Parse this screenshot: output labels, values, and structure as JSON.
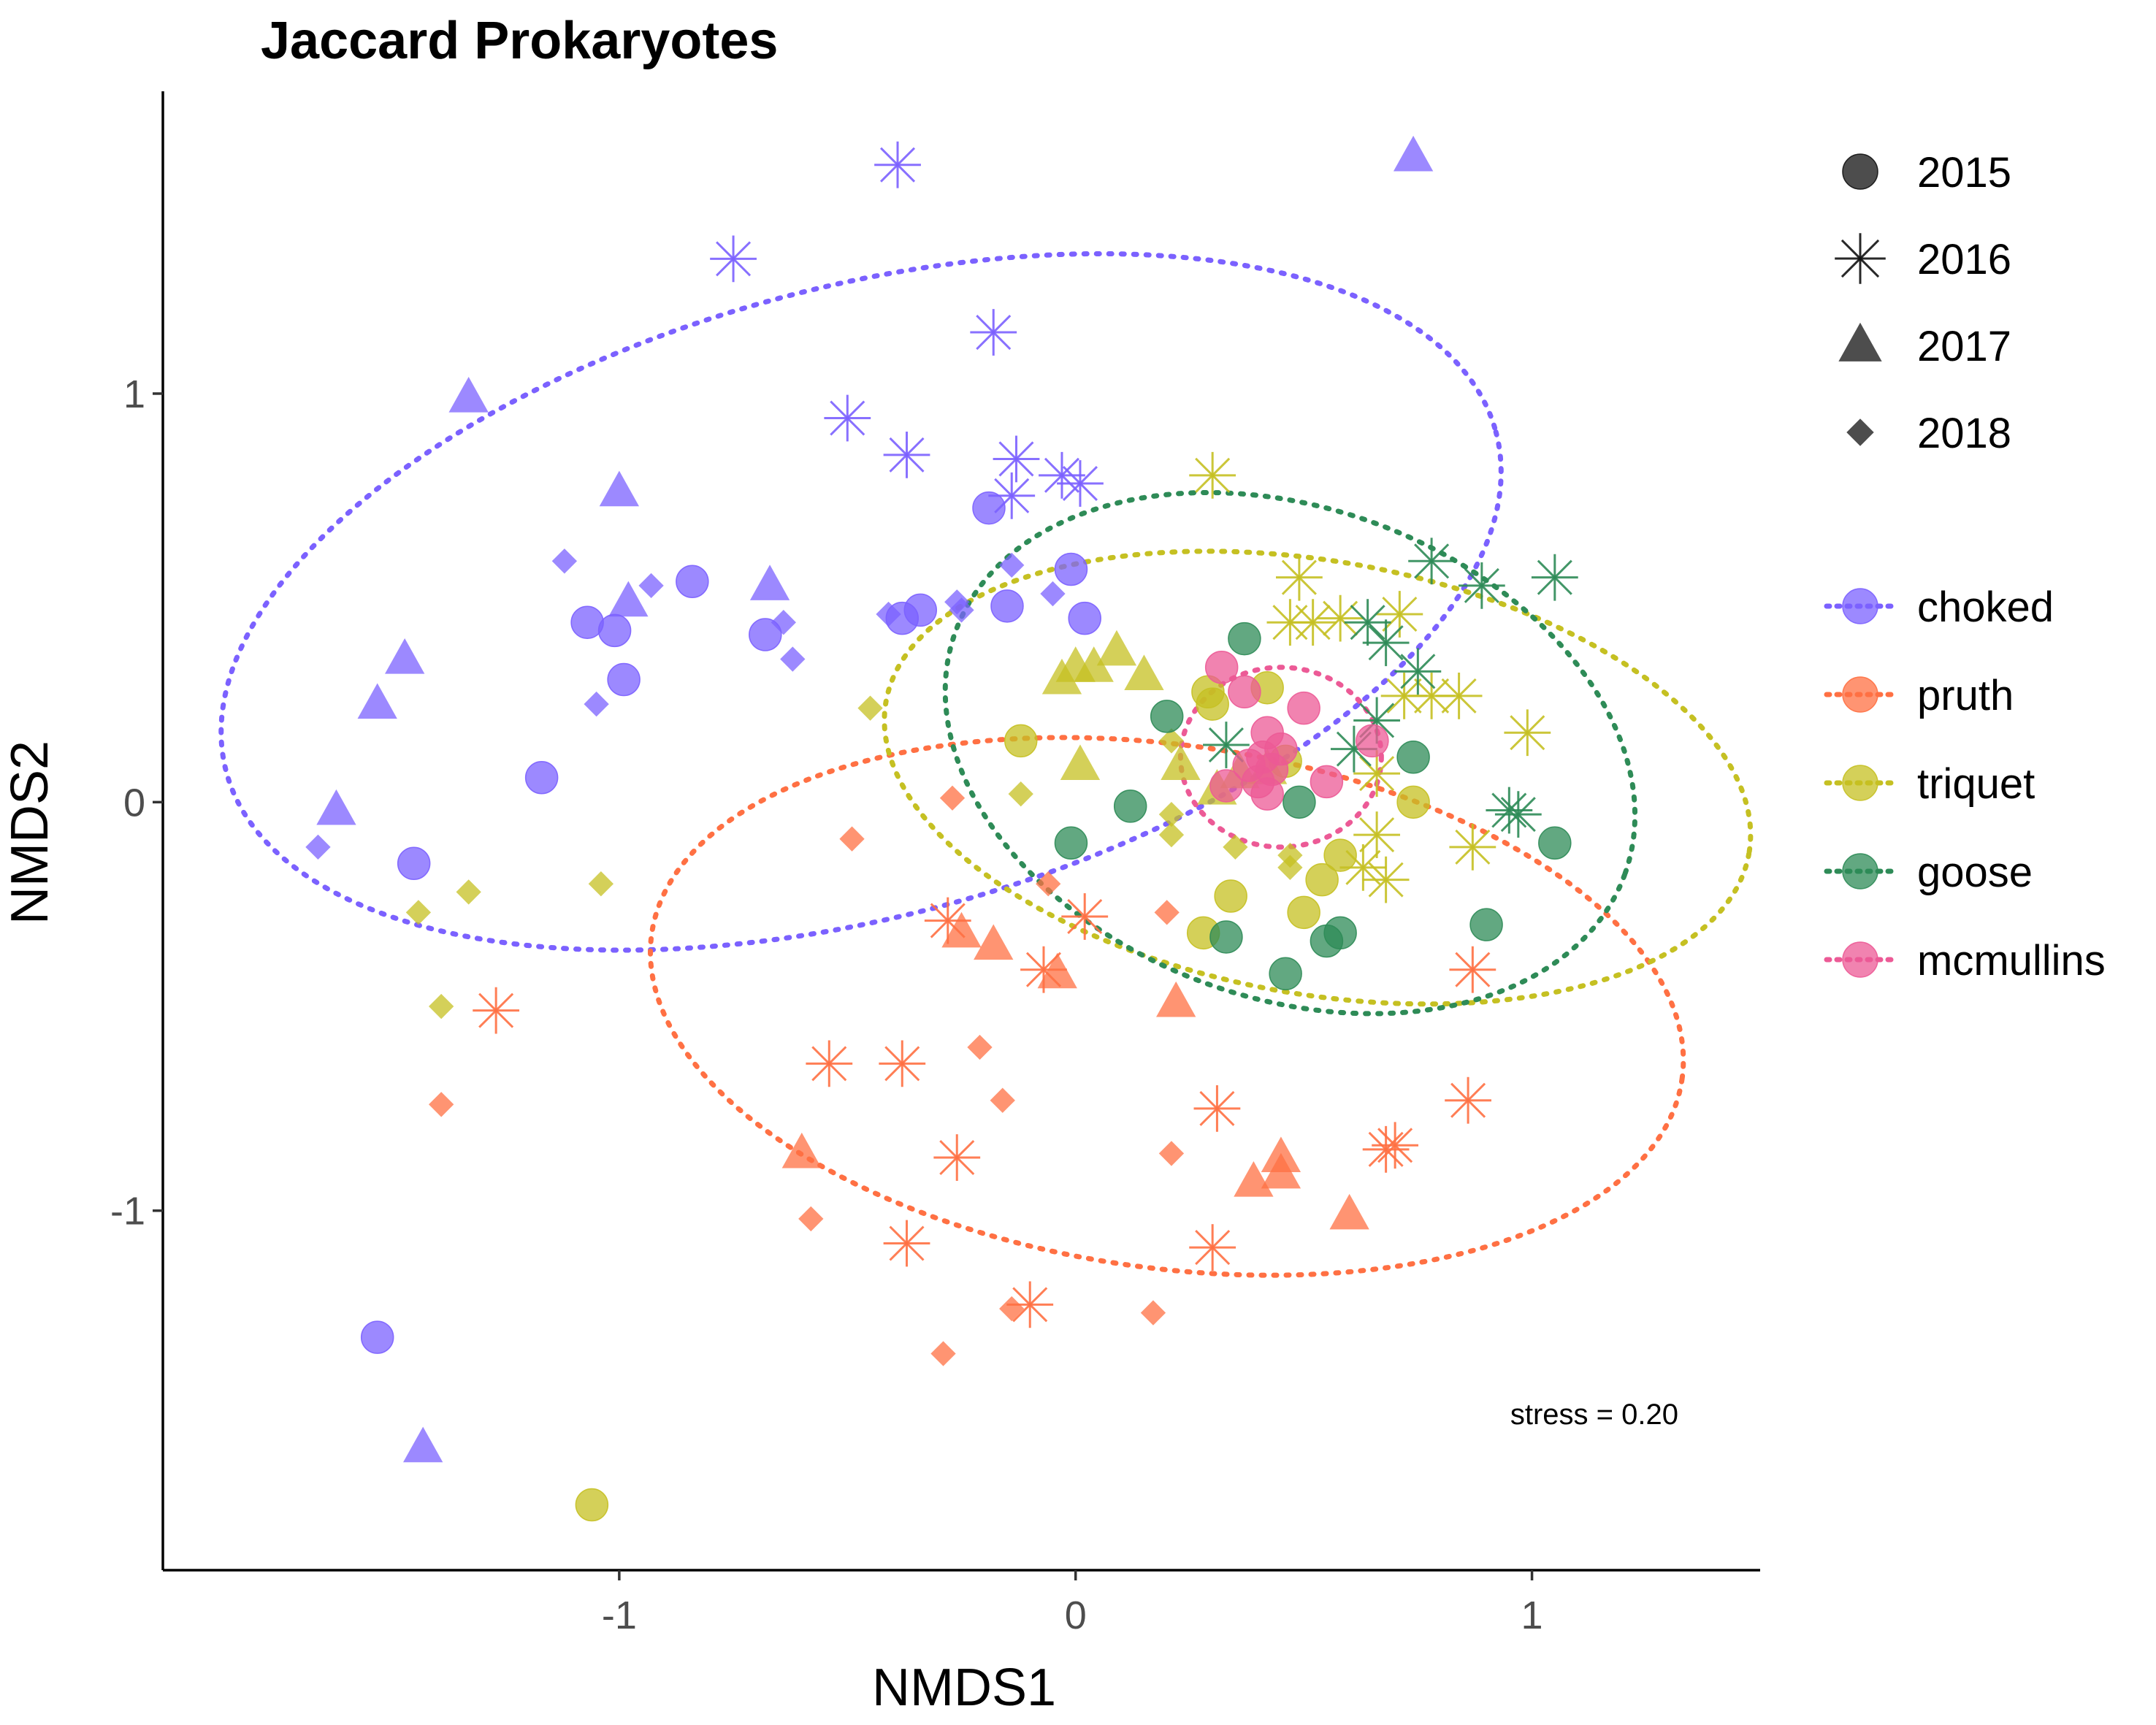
{
  "chart_data": {
    "type": "scatter",
    "title": "Jaccard Prokaryotes",
    "xlabel": "NMDS1",
    "ylabel": "NMDS2",
    "xlim": [
      -2.0,
      1.5
    ],
    "ylim": [
      -1.88,
      1.74
    ],
    "xticks": [
      -1,
      0,
      1
    ],
    "yticks": [
      -1,
      0,
      1
    ],
    "grid": false,
    "legend_position": "right",
    "annotation": "stress = 0.20",
    "shape_legend": [
      {
        "label": "2015",
        "shape": "circle"
      },
      {
        "label": "2016",
        "shape": "asterisk"
      },
      {
        "label": "2017",
        "shape": "triangle"
      },
      {
        "label": "2018",
        "shape": "diamond"
      }
    ],
    "series": [
      {
        "name": "choked",
        "color": "#7B61FF",
        "ellipse": {
          "cx": -0.47,
          "cy": 0.49,
          "rx": 1.44,
          "ry": 0.77,
          "angle": 15
        },
        "points": [
          {
            "x": 0.74,
            "y": 1.58,
            "year": "2017"
          },
          {
            "x": -0.39,
            "y": 1.56,
            "year": "2016"
          },
          {
            "x": -0.75,
            "y": 1.33,
            "year": "2016"
          },
          {
            "x": -0.18,
            "y": 1.15,
            "year": "2016"
          },
          {
            "x": -1.33,
            "y": 0.99,
            "year": "2017"
          },
          {
            "x": -0.5,
            "y": 0.94,
            "year": "2016"
          },
          {
            "x": -0.37,
            "y": 0.85,
            "year": "2016"
          },
          {
            "x": -0.13,
            "y": 0.84,
            "year": "2016"
          },
          {
            "x": -0.03,
            "y": 0.8,
            "year": "2016"
          },
          {
            "x": 0.01,
            "y": 0.78,
            "year": "2016"
          },
          {
            "x": -1.0,
            "y": 0.76,
            "year": "2017"
          },
          {
            "x": -0.14,
            "y": 0.75,
            "year": "2016"
          },
          {
            "x": -0.19,
            "y": 0.72,
            "year": "2015"
          },
          {
            "x": -1.12,
            "y": 0.59,
            "year": "2018"
          },
          {
            "x": -0.14,
            "y": 0.58,
            "year": "2018"
          },
          {
            "x": -0.01,
            "y": 0.57,
            "year": "2015"
          },
          {
            "x": -0.67,
            "y": 0.53,
            "year": "2017"
          },
          {
            "x": -0.84,
            "y": 0.54,
            "year": "2015"
          },
          {
            "x": -0.93,
            "y": 0.53,
            "year": "2018"
          },
          {
            "x": -0.98,
            "y": 0.49,
            "year": "2017"
          },
          {
            "x": -0.05,
            "y": 0.51,
            "year": "2018"
          },
          {
            "x": -0.26,
            "y": 0.49,
            "year": "2018"
          },
          {
            "x": -0.15,
            "y": 0.48,
            "year": "2015"
          },
          {
            "x": -0.34,
            "y": 0.47,
            "year": "2015"
          },
          {
            "x": -0.41,
            "y": 0.46,
            "year": "2018"
          },
          {
            "x": -0.38,
            "y": 0.45,
            "year": "2015"
          },
          {
            "x": -0.25,
            "y": 0.47,
            "year": "2018"
          },
          {
            "x": 0.02,
            "y": 0.45,
            "year": "2015"
          },
          {
            "x": -1.07,
            "y": 0.44,
            "year": "2015"
          },
          {
            "x": -1.01,
            "y": 0.42,
            "year": "2015"
          },
          {
            "x": -0.68,
            "y": 0.41,
            "year": "2015"
          },
          {
            "x": -0.64,
            "y": 0.44,
            "year": "2018"
          },
          {
            "x": -0.62,
            "y": 0.35,
            "year": "2018"
          },
          {
            "x": -1.47,
            "y": 0.35,
            "year": "2017"
          },
          {
            "x": -0.99,
            "y": 0.3,
            "year": "2015"
          },
          {
            "x": -1.05,
            "y": 0.24,
            "year": "2018"
          },
          {
            "x": -1.53,
            "y": 0.24,
            "year": "2017"
          },
          {
            "x": -1.17,
            "y": 0.06,
            "year": "2015"
          },
          {
            "x": -1.62,
            "y": -0.02,
            "year": "2017"
          },
          {
            "x": -1.66,
            "y": -0.11,
            "year": "2018"
          },
          {
            "x": -1.45,
            "y": -0.15,
            "year": "2015"
          },
          {
            "x": -1.53,
            "y": -1.31,
            "year": "2015"
          },
          {
            "x": -1.43,
            "y": -1.58,
            "year": "2017"
          }
        ]
      },
      {
        "name": "pruth",
        "color": "#FF7043",
        "ellipse": {
          "cx": 0.2,
          "cy": -0.5,
          "rx": 1.14,
          "ry": 0.64,
          "angle": -8
        },
        "points": [
          {
            "x": -0.27,
            "y": 0.01,
            "year": "2018"
          },
          {
            "x": -0.49,
            "y": -0.09,
            "year": "2018"
          },
          {
            "x": -0.06,
            "y": -0.2,
            "year": "2018"
          },
          {
            "x": 0.2,
            "y": -0.27,
            "year": "2018"
          },
          {
            "x": 0.02,
            "y": -0.28,
            "year": "2016"
          },
          {
            "x": -0.28,
            "y": -0.29,
            "year": "2016"
          },
          {
            "x": -0.25,
            "y": -0.32,
            "year": "2017"
          },
          {
            "x": -0.18,
            "y": -0.35,
            "year": "2017"
          },
          {
            "x": 0.87,
            "y": -0.41,
            "year": "2016"
          },
          {
            "x": -0.07,
            "y": -0.41,
            "year": "2016"
          },
          {
            "x": -0.04,
            "y": -0.42,
            "year": "2017"
          },
          {
            "x": 0.22,
            "y": -0.49,
            "year": "2017"
          },
          {
            "x": -1.27,
            "y": -0.51,
            "year": "2016"
          },
          {
            "x": -0.21,
            "y": -0.6,
            "year": "2018"
          },
          {
            "x": -0.54,
            "y": -0.64,
            "year": "2016"
          },
          {
            "x": -0.38,
            "y": -0.64,
            "year": "2016"
          },
          {
            "x": -1.39,
            "y": -0.74,
            "year": "2018"
          },
          {
            "x": -0.16,
            "y": -0.73,
            "year": "2018"
          },
          {
            "x": 0.86,
            "y": -0.73,
            "year": "2016"
          },
          {
            "x": 0.31,
            "y": -0.75,
            "year": "2016"
          },
          {
            "x": 0.68,
            "y": -0.85,
            "year": "2016"
          },
          {
            "x": 0.7,
            "y": -0.84,
            "year": "2016"
          },
          {
            "x": -0.6,
            "y": -0.86,
            "year": "2017"
          },
          {
            "x": 0.45,
            "y": -0.87,
            "year": "2017"
          },
          {
            "x": 0.21,
            "y": -0.86,
            "year": "2018"
          },
          {
            "x": -0.26,
            "y": -0.87,
            "year": "2016"
          },
          {
            "x": 0.39,
            "y": -0.93,
            "year": "2017"
          },
          {
            "x": 0.45,
            "y": -0.91,
            "year": "2017"
          },
          {
            "x": -0.58,
            "y": -1.02,
            "year": "2018"
          },
          {
            "x": 0.6,
            "y": -1.01,
            "year": "2017"
          },
          {
            "x": -0.37,
            "y": -1.08,
            "year": "2016"
          },
          {
            "x": 0.3,
            "y": -1.09,
            "year": "2016"
          },
          {
            "x": -0.1,
            "y": -1.23,
            "year": "2016"
          },
          {
            "x": -0.14,
            "y": -1.24,
            "year": "2018"
          },
          {
            "x": 0.17,
            "y": -1.25,
            "year": "2018"
          },
          {
            "x": -0.29,
            "y": -1.35,
            "year": "2018"
          }
        ]
      },
      {
        "name": "triquet",
        "color": "#C5C022",
        "ellipse": {
          "cx": 0.53,
          "cy": 0.06,
          "rx": 0.96,
          "ry": 0.53,
          "angle": -10
        },
        "points": [
          {
            "x": 0.3,
            "y": 0.8,
            "year": "2016"
          },
          {
            "x": 0.49,
            "y": 0.55,
            "year": "2016"
          },
          {
            "x": 0.71,
            "y": 0.46,
            "year": "2016"
          },
          {
            "x": 0.52,
            "y": 0.44,
            "year": "2016"
          },
          {
            "x": 0.47,
            "y": 0.44,
            "year": "2016"
          },
          {
            "x": 0.58,
            "y": 0.45,
            "year": "2016"
          },
          {
            "x": 0.09,
            "y": 0.37,
            "year": "2017"
          },
          {
            "x": 0.0,
            "y": 0.33,
            "year": "2017"
          },
          {
            "x": 0.04,
            "y": 0.33,
            "year": "2017"
          },
          {
            "x": 0.15,
            "y": 0.31,
            "year": "2017"
          },
          {
            "x": -0.03,
            "y": 0.3,
            "year": "2017"
          },
          {
            "x": 0.42,
            "y": 0.28,
            "year": "2015"
          },
          {
            "x": 0.29,
            "y": 0.27,
            "year": "2015"
          },
          {
            "x": 0.3,
            "y": 0.24,
            "year": "2015"
          },
          {
            "x": 0.72,
            "y": 0.26,
            "year": "2016"
          },
          {
            "x": 0.78,
            "y": 0.26,
            "year": "2016"
          },
          {
            "x": 0.84,
            "y": 0.26,
            "year": "2016"
          },
          {
            "x": -0.45,
            "y": 0.23,
            "year": "2018"
          },
          {
            "x": 0.99,
            "y": 0.17,
            "year": "2016"
          },
          {
            "x": -0.12,
            "y": 0.15,
            "year": "2015"
          },
          {
            "x": 0.21,
            "y": 0.15,
            "year": "2018"
          },
          {
            "x": 0.36,
            "y": 0.07,
            "year": "2017"
          },
          {
            "x": 0.01,
            "y": 0.09,
            "year": "2017"
          },
          {
            "x": 0.23,
            "y": 0.09,
            "year": "2017"
          },
          {
            "x": 0.42,
            "y": 0.08,
            "year": "2017"
          },
          {
            "x": 0.46,
            "y": 0.1,
            "year": "2015"
          },
          {
            "x": 0.31,
            "y": 0.03,
            "year": "2017"
          },
          {
            "x": 0.66,
            "y": 0.07,
            "year": "2016"
          },
          {
            "x": -0.12,
            "y": 0.02,
            "year": "2018"
          },
          {
            "x": 0.74,
            "y": 0.0,
            "year": "2015"
          },
          {
            "x": 0.21,
            "y": -0.03,
            "year": "2018"
          },
          {
            "x": 0.21,
            "y": -0.08,
            "year": "2018"
          },
          {
            "x": 0.66,
            "y": -0.08,
            "year": "2016"
          },
          {
            "x": 0.35,
            "y": -0.11,
            "year": "2018"
          },
          {
            "x": 0.47,
            "y": -0.13,
            "year": "2018"
          },
          {
            "x": 0.58,
            "y": -0.13,
            "year": "2015"
          },
          {
            "x": 0.87,
            "y": -0.11,
            "year": "2016"
          },
          {
            "x": 0.47,
            "y": -0.16,
            "year": "2018"
          },
          {
            "x": 0.63,
            "y": -0.16,
            "year": "2016"
          },
          {
            "x": 0.68,
            "y": -0.19,
            "year": "2016"
          },
          {
            "x": 0.54,
            "y": -0.19,
            "year": "2015"
          },
          {
            "x": -1.04,
            "y": -0.2,
            "year": "2018"
          },
          {
            "x": 0.34,
            "y": -0.23,
            "year": "2015"
          },
          {
            "x": -1.33,
            "y": -0.22,
            "year": "2018"
          },
          {
            "x": -1.44,
            "y": -0.27,
            "year": "2018"
          },
          {
            "x": 0.5,
            "y": -0.27,
            "year": "2015"
          },
          {
            "x": 0.28,
            "y": -0.32,
            "year": "2015"
          },
          {
            "x": -1.39,
            "y": -0.5,
            "year": "2018"
          },
          {
            "x": -1.06,
            "y": -1.72,
            "year": "2015"
          }
        ]
      },
      {
        "name": "goose",
        "color": "#2E8B57",
        "ellipse": {
          "cx": 0.47,
          "cy": 0.12,
          "rx": 0.78,
          "ry": 0.6,
          "angle": -20
        },
        "points": [
          {
            "x": 0.78,
            "y": 0.59,
            "year": "2016"
          },
          {
            "x": 0.89,
            "y": 0.53,
            "year": "2016"
          },
          {
            "x": 1.05,
            "y": 0.55,
            "year": "2016"
          },
          {
            "x": 0.64,
            "y": 0.44,
            "year": "2016"
          },
          {
            "x": 0.68,
            "y": 0.39,
            "year": "2016"
          },
          {
            "x": 0.37,
            "y": 0.4,
            "year": "2015"
          },
          {
            "x": 0.75,
            "y": 0.32,
            "year": "2016"
          },
          {
            "x": 0.2,
            "y": 0.21,
            "year": "2015"
          },
          {
            "x": 0.66,
            "y": 0.2,
            "year": "2016"
          },
          {
            "x": 0.33,
            "y": 0.14,
            "year": "2016"
          },
          {
            "x": 0.61,
            "y": 0.13,
            "year": "2016"
          },
          {
            "x": 0.74,
            "y": 0.11,
            "year": "2015"
          },
          {
            "x": 0.12,
            "y": -0.01,
            "year": "2015"
          },
          {
            "x": 0.49,
            "y": 0.0,
            "year": "2015"
          },
          {
            "x": 0.95,
            "y": -0.02,
            "year": "2016"
          },
          {
            "x": 0.97,
            "y": -0.03,
            "year": "2016"
          },
          {
            "x": -0.01,
            "y": -0.1,
            "year": "2015"
          },
          {
            "x": 1.05,
            "y": -0.1,
            "year": "2015"
          },
          {
            "x": 0.9,
            "y": -0.3,
            "year": "2015"
          },
          {
            "x": 0.58,
            "y": -0.32,
            "year": "2015"
          },
          {
            "x": 0.55,
            "y": -0.34,
            "year": "2015"
          },
          {
            "x": 0.33,
            "y": -0.33,
            "year": "2015"
          },
          {
            "x": 0.46,
            "y": -0.42,
            "year": "2015"
          }
        ]
      },
      {
        "name": "mcmullins",
        "color": "#EC5A96",
        "ellipse": {
          "cx": 0.45,
          "cy": 0.11,
          "rx": 0.22,
          "ry": 0.22,
          "angle": 0
        },
        "points": [
          {
            "x": 0.32,
            "y": 0.33,
            "year": "2015"
          },
          {
            "x": 0.37,
            "y": 0.27,
            "year": "2015"
          },
          {
            "x": 0.5,
            "y": 0.23,
            "year": "2015"
          },
          {
            "x": 0.42,
            "y": 0.17,
            "year": "2015"
          },
          {
            "x": 0.45,
            "y": 0.13,
            "year": "2015"
          },
          {
            "x": 0.65,
            "y": 0.15,
            "year": "2015"
          },
          {
            "x": 0.41,
            "y": 0.11,
            "year": "2015"
          },
          {
            "x": 0.38,
            "y": 0.09,
            "year": "2015"
          },
          {
            "x": 0.43,
            "y": 0.08,
            "year": "2015"
          },
          {
            "x": 0.4,
            "y": 0.05,
            "year": "2015"
          },
          {
            "x": 0.55,
            "y": 0.05,
            "year": "2015"
          },
          {
            "x": 0.33,
            "y": 0.04,
            "year": "2015"
          },
          {
            "x": 0.42,
            "y": 0.02,
            "year": "2015"
          }
        ]
      }
    ]
  }
}
